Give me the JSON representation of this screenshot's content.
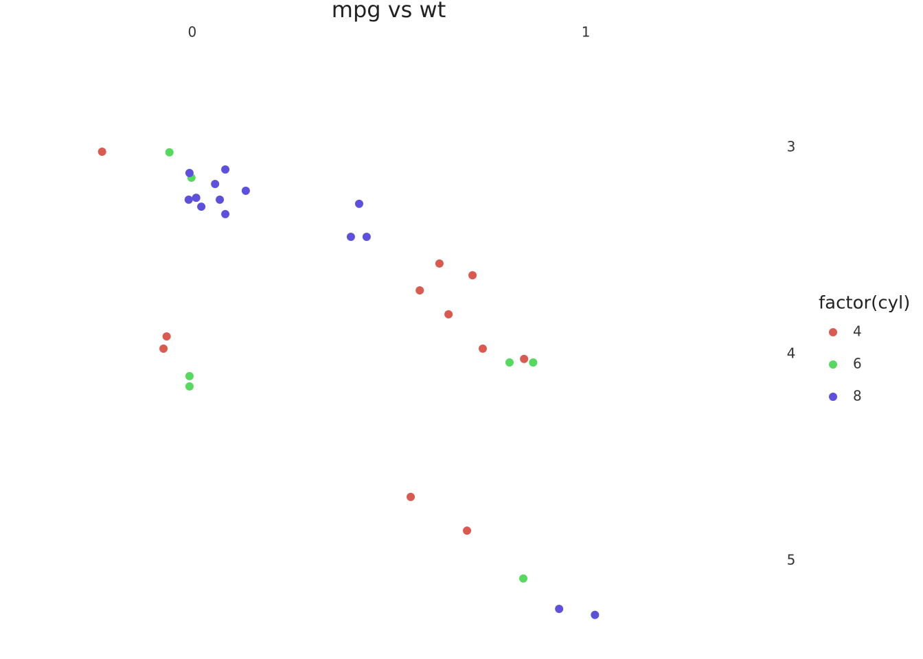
{
  "chart_data": {
    "type": "scatter",
    "title": "mpg vs wt",
    "legend_title": "factor(cyl)",
    "legend_position": "right",
    "xlim": [
      -0.279,
      1.326
    ],
    "xticks": [
      0,
      1
    ],
    "x_axis_position": "top",
    "ylim": [
      2.485,
      5.409
    ],
    "yticks": [
      3,
      4,
      5
    ],
    "y_axis_position": "right",
    "y_inverted": true,
    "grid": false,
    "series": [
      {
        "name": "4",
        "color": "#db5a50",
        "x": [
          -0.229,
          -0.065,
          -0.073,
          0.628,
          0.712,
          0.578,
          0.651,
          0.738,
          0.843,
          0.555,
          0.698
        ],
        "values": [
          3.02,
          3.914,
          3.973,
          3.561,
          3.618,
          3.691,
          3.807,
          3.973,
          4.023,
          4.691,
          4.854
        ]
      },
      {
        "name": "6",
        "color": "#55d95f",
        "x": [
          -0.058,
          -0.002,
          -0.007,
          -0.007,
          0.806,
          0.866,
          0.841
        ],
        "values": [
          3.023,
          3.146,
          4.106,
          4.156,
          4.04,
          4.04,
          5.086
        ]
      },
      {
        "name": "8",
        "color": "#5c50dc",
        "x": [
          -0.007,
          0.084,
          0.058,
          0.136,
          -0.009,
          0.01,
          0.07,
          0.023,
          0.084,
          0.424,
          0.403,
          0.443,
          0.932,
          1.023
        ],
        "values": [
          3.123,
          3.106,
          3.176,
          3.209,
          3.252,
          3.243,
          3.252,
          3.286,
          3.322,
          3.272,
          3.432,
          3.432,
          5.233,
          5.262
        ]
      }
    ]
  }
}
